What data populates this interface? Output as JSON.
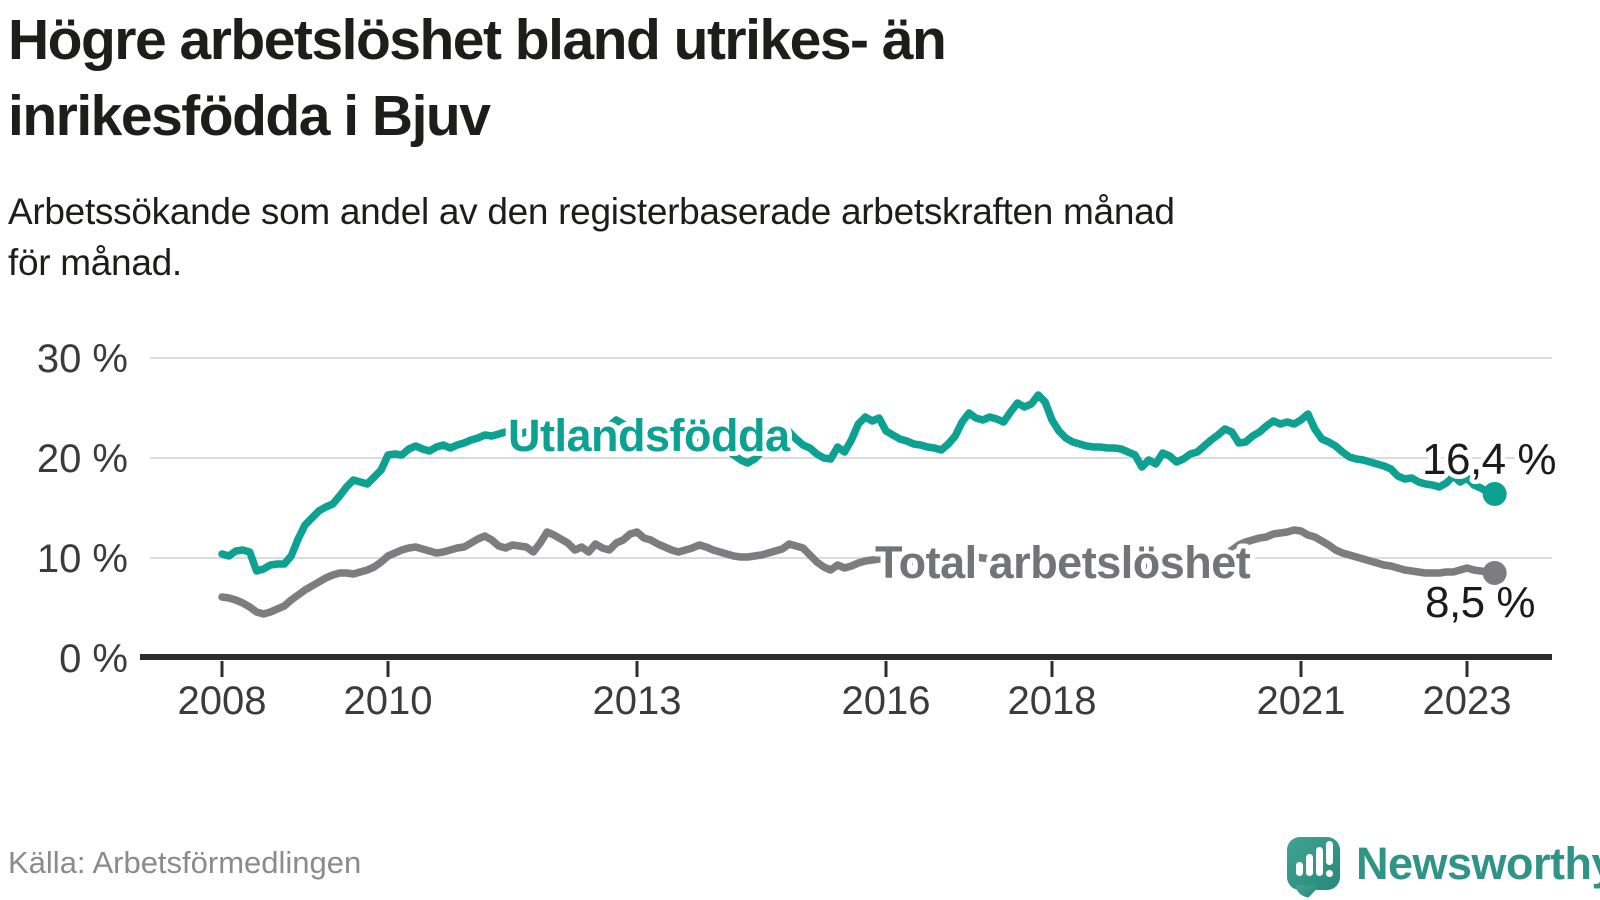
{
  "page": {
    "title_lines": [
      "Högre arbetslöshet bland utrikes- än",
      "inrikesfödda i Bjuv"
    ],
    "subtitle_lines": [
      "Arbetssökande som andel av den registerbaserade arbetskraften månad",
      "för månad."
    ],
    "source": "Källa: Arbetsförmedlingen",
    "brand": "Newsworthy"
  },
  "colors": {
    "teal": "#0CA191",
    "gray_line": "#7C7C81",
    "gray_label": "#73737A",
    "title_text": "#1D1D1B",
    "axis": "#2D2D2D",
    "tick_text": "#3B3B3B",
    "grid": "#DCDCDC",
    "value_text": "#1B1B1B",
    "source_text": "#8B8B8B",
    "brand_teal": "#2F9386",
    "icon_teal_light": "#41A391",
    "icon_teal_dark": "#27897B"
  },
  "chart_data": {
    "type": "line",
    "title": "Arbetssökande som andel av den registerbaserade arbetskraften månad för månad",
    "xlabel": "",
    "ylabel": "%",
    "grid": "horizontal",
    "legend_position": "inline-labels",
    "x": {
      "start_year": 2008,
      "points_per_year": 12,
      "end_label_year_approx": 2023.33,
      "tick_years": [
        2008,
        2010,
        2013,
        2016,
        2018,
        2021,
        2023
      ]
    },
    "y": {
      "ticks": [
        0,
        10,
        20,
        30
      ],
      "tick_labels": [
        "0 %",
        "10 %",
        "20 %",
        "30 %"
      ],
      "range": [
        0,
        30
      ]
    },
    "series": [
      {
        "name": "Utlandsfödda",
        "color": "#0CA191",
        "end_value": 16.4,
        "end_label": "16,4 %",
        "values": [
          10.4,
          10.2,
          10.7,
          10.8,
          10.6,
          8.7,
          8.9,
          9.3,
          9.4,
          9.4,
          10.2,
          11.9,
          13.3,
          14.0,
          14.7,
          15.1,
          15.4,
          16.2,
          17.1,
          17.8,
          17.6,
          17.4,
          18.1,
          18.8,
          20.3,
          20.4,
          20.3,
          20.9,
          21.2,
          20.9,
          20.7,
          21.1,
          21.3,
          21.0,
          21.3,
          21.5,
          21.8,
          22.0,
          22.3,
          22.2,
          22.4,
          22.6,
          22.5,
          22.4,
          22.6,
          22.8,
          22.6,
          22.4,
          22.2,
          22.4,
          22.6,
          22.4,
          22.2,
          22.0,
          22.3,
          22.6,
          23.2,
          23.8,
          23.4,
          22.8,
          22.4,
          22.6,
          22.3,
          22.0,
          21.8,
          21.6,
          21.8,
          22.0,
          21.7,
          21.5,
          21.3,
          21.2,
          21.0,
          20.8,
          20.3,
          19.8,
          19.5,
          19.9,
          20.6,
          21.6,
          22.8,
          23.2,
          22.6,
          21.9,
          21.3,
          21.0,
          20.4,
          20.0,
          19.9,
          21.1,
          20.6,
          21.8,
          23.4,
          24.1,
          23.7,
          24.0,
          22.7,
          22.3,
          21.9,
          21.7,
          21.4,
          21.3,
          21.1,
          21.0,
          20.8,
          21.4,
          22.2,
          23.6,
          24.5,
          24.0,
          23.8,
          24.1,
          23.9,
          23.6,
          24.6,
          25.5,
          25.1,
          25.4,
          26.3,
          25.6,
          23.8,
          22.7,
          22.0,
          21.6,
          21.4,
          21.2,
          21.1,
          21.1,
          21.0,
          21.0,
          20.9,
          20.6,
          20.3,
          19.1,
          19.8,
          19.4,
          20.5,
          20.2,
          19.6,
          19.9,
          20.4,
          20.6,
          21.2,
          21.8,
          22.3,
          22.9,
          22.6,
          21.5,
          21.6,
          22.2,
          22.6,
          23.2,
          23.7,
          23.4,
          23.6,
          23.4,
          23.8,
          24.4,
          22.9,
          21.9,
          21.6,
          21.2,
          20.6,
          20.1,
          19.9,
          19.8,
          19.6,
          19.4,
          19.2,
          18.9,
          18.2,
          17.9,
          18.0,
          17.6,
          17.4,
          17.3,
          17.1,
          17.5,
          18.2,
          17.6,
          18.0,
          17.3,
          17.0,
          16.6,
          16.4
        ]
      },
      {
        "name": "Total arbetslöshet",
        "color": "#7C7C81",
        "end_value": 8.5,
        "end_label": "8,5 %",
        "values": [
          6.1,
          6.0,
          5.8,
          5.5,
          5.1,
          4.6,
          4.4,
          4.6,
          4.9,
          5.2,
          5.8,
          6.3,
          6.8,
          7.2,
          7.6,
          8.0,
          8.3,
          8.5,
          8.5,
          8.4,
          8.6,
          8.8,
          9.1,
          9.6,
          10.2,
          10.5,
          10.8,
          11.0,
          11.1,
          10.9,
          10.7,
          10.5,
          10.6,
          10.8,
          11.0,
          11.1,
          11.5,
          11.9,
          12.2,
          11.8,
          11.2,
          11.0,
          11.3,
          11.2,
          11.1,
          10.6,
          11.5,
          12.6,
          12.3,
          11.9,
          11.5,
          10.8,
          11.1,
          10.6,
          11.4,
          11.0,
          10.8,
          11.5,
          11.8,
          12.4,
          12.6,
          12.0,
          11.8,
          11.4,
          11.1,
          10.8,
          10.6,
          10.8,
          11.0,
          11.3,
          11.1,
          10.8,
          10.6,
          10.4,
          10.2,
          10.1,
          10.1,
          10.2,
          10.3,
          10.5,
          10.7,
          10.9,
          11.4,
          11.2,
          11.0,
          10.3,
          9.6,
          9.1,
          8.8,
          9.3,
          9.0,
          9.2,
          9.5,
          9.7,
          9.8,
          9.9,
          10.0,
          10.1,
          10.0,
          9.8,
          9.7,
          9.6,
          9.6,
          9.5,
          9.6,
          9.7,
          9.9,
          10.1,
          10.2,
          10.1,
          10.0,
          9.9,
          9.8,
          9.7,
          9.8,
          9.9,
          9.9,
          10.0,
          10.1,
          10.0,
          9.9,
          9.8,
          9.7,
          9.6,
          9.5,
          9.4,
          9.4,
          9.4,
          9.3,
          9.3,
          9.3,
          9.2,
          9.2,
          9.1,
          9.1,
          9.1,
          9.2,
          9.2,
          9.3,
          9.4,
          9.4,
          9.5,
          9.6,
          9.7,
          9.8,
          10.2,
          10.8,
          11.3,
          11.6,
          11.8,
          12.0,
          12.1,
          12.4,
          12.5,
          12.6,
          12.8,
          12.7,
          12.3,
          12.1,
          11.7,
          11.3,
          10.8,
          10.5,
          10.3,
          10.1,
          9.9,
          9.7,
          9.5,
          9.3,
          9.2,
          9.0,
          8.8,
          8.7,
          8.6,
          8.5,
          8.5,
          8.5,
          8.6,
          8.6,
          8.8,
          9.0,
          8.8,
          8.7,
          8.6,
          8.5
        ]
      }
    ]
  }
}
